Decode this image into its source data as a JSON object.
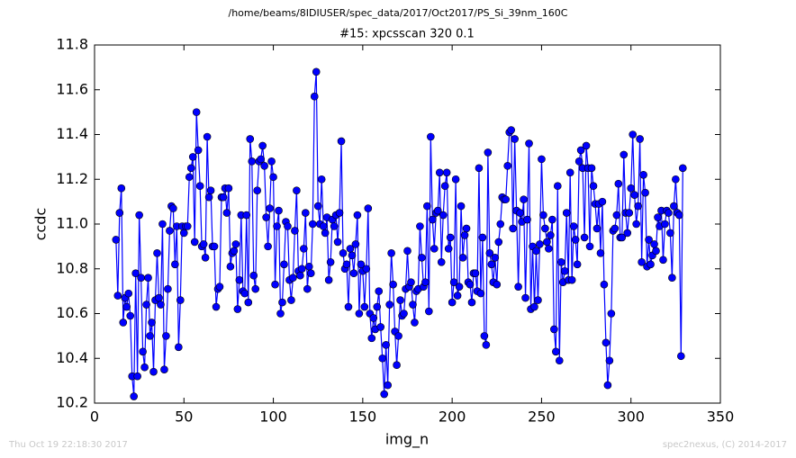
{
  "chart_data": {
    "type": "line",
    "title": "/home/beams/8IDIUSER/spec_data/2017/Oct2017/PS_Si_39nm_160C",
    "subtitle": "#15: xpcsscan 320 0.1",
    "xlabel": "img_n",
    "ylabel": "ccdc",
    "footer_left": "Thu Oct 19 22:18:30 2017",
    "footer_right": "spec2nexus, (C) 2014-2017",
    "color": "#0000ff",
    "xlim": [
      0,
      350
    ],
    "xticks": [
      0,
      50,
      100,
      150,
      200,
      250,
      300,
      350
    ],
    "ylim": [
      10.2,
      11.8
    ],
    "yticks": [
      10.2,
      10.4,
      10.6,
      10.8,
      {
        "value": 11,
        "label": "11.0"
      },
      11.2,
      11.4,
      11.6,
      11.8
    ],
    "x": [
      12,
      13,
      14,
      15,
      16,
      17,
      18,
      19,
      20,
      21,
      22,
      23,
      24,
      25,
      26,
      27,
      28,
      29,
      30,
      31,
      32,
      33,
      34,
      35,
      36,
      37,
      38,
      39,
      40,
      41,
      42,
      43,
      44,
      45,
      46,
      47,
      48,
      49,
      50,
      51,
      52,
      53,
      54,
      55,
      56,
      57,
      58,
      59,
      60,
      61,
      62,
      63,
      64,
      65,
      66,
      67,
      68,
      69,
      70,
      71,
      72,
      73,
      74,
      75,
      76,
      77,
      78,
      79,
      80,
      81,
      82,
      83,
      84,
      85,
      86,
      87,
      88,
      89,
      90,
      91,
      92,
      93,
      94,
      95,
      96,
      97,
      98,
      99,
      100,
      101,
      102,
      103,
      104,
      105,
      106,
      107,
      108,
      109,
      110,
      111,
      112,
      113,
      114,
      115,
      116,
      117,
      118,
      119,
      120,
      121,
      122,
      123,
      124,
      125,
      126,
      127,
      128,
      129,
      130,
      131,
      132,
      133,
      134,
      135,
      136,
      137,
      138,
      139,
      140,
      141,
      142,
      143,
      144,
      145,
      146,
      147,
      148,
      149,
      150,
      151,
      152,
      153,
      154,
      155,
      156,
      157,
      158,
      159,
      160,
      161,
      162,
      163,
      164,
      165,
      166,
      167,
      168,
      169,
      170,
      171,
      172,
      173,
      174,
      175,
      176,
      177,
      178,
      179,
      180,
      181,
      182,
      183,
      184,
      185,
      186,
      187,
      188,
      189,
      190,
      191,
      192,
      193,
      194,
      195,
      196,
      197,
      198,
      199,
      200,
      201,
      202,
      203,
      204,
      205,
      206,
      207,
      208,
      209,
      210,
      211,
      212,
      213,
      214,
      215,
      216,
      217,
      218,
      219,
      220,
      221,
      222,
      223,
      224,
      225,
      226,
      227,
      228,
      229,
      230,
      231,
      232,
      233,
      234,
      235,
      236,
      237,
      238,
      239,
      240,
      241,
      242,
      243,
      244,
      245,
      246,
      247,
      248,
      249,
      250,
      251,
      252,
      253,
      254,
      255,
      256,
      257,
      258,
      259,
      260,
      261,
      262,
      263,
      264,
      265,
      266,
      267,
      268,
      269,
      270,
      271,
      272,
      273,
      274,
      275,
      276,
      277,
      278,
      279,
      280,
      281,
      282,
      283,
      284,
      285,
      286,
      287,
      288,
      289,
      290,
      291,
      292,
      293,
      294,
      295,
      296,
      297,
      298,
      299,
      300,
      301,
      302,
      303,
      304,
      305,
      306,
      307,
      308,
      309,
      310,
      311,
      312,
      313,
      314,
      315,
      316,
      317,
      318,
      319,
      320,
      321,
      322,
      323,
      324,
      325,
      326,
      327,
      328,
      329
    ],
    "values": [
      10.93,
      10.68,
      11.05,
      11.16,
      10.56,
      10.67,
      10.63,
      10.69,
      10.59,
      10.32,
      10.23,
      10.78,
      10.32,
      11.04,
      10.76,
      10.43,
      10.36,
      10.64,
      10.76,
      10.5,
      10.56,
      10.34,
      10.66,
      10.87,
      10.67,
      10.64,
      11.0,
      10.35,
      10.5,
      10.71,
      10.97,
      11.08,
      11.07,
      10.82,
      10.99,
      10.45,
      10.66,
      10.99,
      10.96,
      10.99,
      10.99,
      11.21,
      11.25,
      11.3,
      10.92,
      11.5,
      11.33,
      11.17,
      10.9,
      10.91,
      10.85,
      11.39,
      11.12,
      11.15,
      10.9,
      10.9,
      10.63,
      10.71,
      10.72,
      11.12,
      11.12,
      11.16,
      11.05,
      11.16,
      10.81,
      10.87,
      10.88,
      10.91,
      10.62,
      10.75,
      11.04,
      10.7,
      10.69,
      11.04,
      10.65,
      11.38,
      11.28,
      10.77,
      10.71,
      11.15,
      11.28,
      11.29,
      11.35,
      11.26,
      11.03,
      10.9,
      11.07,
      11.28,
      11.21,
      10.73,
      10.99,
      11.06,
      10.6,
      10.65,
      10.82,
      11.01,
      10.99,
      10.75,
      10.66,
      10.76,
      10.97,
      11.15,
      10.79,
      10.77,
      10.8,
      10.89,
      11.05,
      10.71,
      10.81,
      10.78,
      11.0,
      11.57,
      11.68,
      11.08,
      11.0,
      11.2,
      10.99,
      10.96,
      11.03,
      10.75,
      10.83,
      11.02,
      10.99,
      11.04,
      10.92,
      11.05,
      11.37,
      10.87,
      10.8,
      10.82,
      10.63,
      10.89,
      10.86,
      10.78,
      10.91,
      11.04,
      10.6,
      10.82,
      10.79,
      10.63,
      10.8,
      11.07,
      10.6,
      10.49,
      10.58,
      10.53,
      10.63,
      10.7,
      10.54,
      10.4,
      10.24,
      10.46,
      10.28,
      10.64,
      10.87,
      10.73,
      10.52,
      10.37,
      10.5,
      10.66,
      10.59,
      10.6,
      10.71,
      10.88,
      10.72,
      10.74,
      10.64,
      10.56,
      10.7,
      10.71,
      10.99,
      10.85,
      10.72,
      10.74,
      11.08,
      10.61,
      11.39,
      11.02,
      10.89,
      11.05,
      11.06,
      11.23,
      10.83,
      11.04,
      11.17,
      11.23,
      10.89,
      10.94,
      10.65,
      10.74,
      11.2,
      10.68,
      10.72,
      11.08,
      10.85,
      10.95,
      10.98,
      10.74,
      10.73,
      10.65,
      10.78,
      10.78,
      10.7,
      11.25,
      10.69,
      10.94,
      10.5,
      10.46,
      11.32,
      10.87,
      10.82,
      10.74,
      10.85,
      10.73,
      10.92,
      11.0,
      11.12,
      11.11,
      11.11,
      11.26,
      11.41,
      11.42,
      10.98,
      11.38,
      11.06,
      10.72,
      11.05,
      11.01,
      11.11,
      10.67,
      11.02,
      11.36,
      10.62,
      10.9,
      10.63,
      10.88,
      10.66,
      10.91,
      11.29,
      11.04,
      10.98,
      10.92,
      10.89,
      10.95,
      11.02,
      10.53,
      10.43,
      11.17,
      10.39,
      10.83,
      10.74,
      10.79,
      11.05,
      10.75,
      11.23,
      10.75,
      10.99,
      10.93,
      10.82,
      11.28,
      11.33,
      11.25,
      10.94,
      11.35,
      11.25,
      10.9,
      11.25,
      11.17,
      11.09,
      10.98,
      11.09,
      10.87,
      11.1,
      10.73,
      10.47,
      10.28,
      10.39,
      10.6,
      10.97,
      10.98,
      11.04,
      11.18,
      10.94,
      10.94,
      11.31,
      11.05,
      10.96,
      11.05,
      11.16,
      11.4,
      11.13,
      11.0,
      11.08,
      11.38,
      10.83,
      11.22,
      11.14,
      10.81,
      10.93,
      10.82,
      10.86,
      10.91,
      10.88,
      11.03,
      10.99,
      11.06,
      10.84,
      11.0,
      11.06,
      11.05,
      10.96,
      10.76,
      11.08,
      11.2,
      11.05,
      11.04,
      10.41,
      11.25
    ]
  }
}
